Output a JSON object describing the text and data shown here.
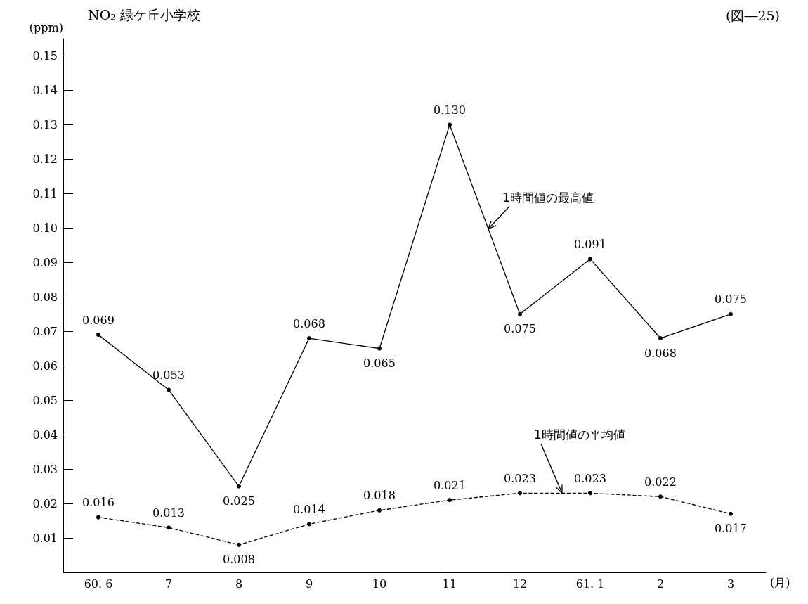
{
  "chart_data": {
    "type": "line",
    "title": "NO₂ 緑ケ丘小学校",
    "ylabel": "(ppm)",
    "xlabel": "(月)",
    "annotations": [
      "(図―25)"
    ],
    "categories": [
      "60. 6",
      "7",
      "8",
      "9",
      "10",
      "11",
      "12",
      "61. 1",
      "2",
      "3"
    ],
    "series": [
      {
        "name": "1時間値の最高値",
        "color": "#000000",
        "line_style": "solid",
        "values": [
          0.069,
          0.053,
          0.025,
          0.068,
          0.065,
          0.13,
          0.075,
          0.091,
          0.068,
          0.075
        ],
        "value_labels": [
          "0.069",
          "0.053",
          "0.025",
          "0.068",
          "0.065",
          "0.130",
          "0.075",
          "0.091",
          "0.068",
          "0.075"
        ]
      },
      {
        "name": "1時間値の平均値",
        "color": "#000000",
        "line_style": "dashed",
        "values": [
          0.016,
          0.013,
          0.008,
          0.014,
          0.018,
          0.021,
          0.023,
          0.023,
          0.022,
          0.017
        ],
        "value_labels": [
          "0.016",
          "0.013",
          "0.008",
          "0.014",
          "0.018",
          "0.021",
          "0.023",
          "0.023",
          "0.022",
          "0.017"
        ]
      }
    ],
    "ylim": [
      0,
      0.155
    ],
    "yticks": [
      {
        "value": 0.01,
        "label": "0.01"
      },
      {
        "value": 0.02,
        "label": "0.02"
      },
      {
        "value": 0.03,
        "label": "0.03"
      },
      {
        "value": 0.04,
        "label": "0.04"
      },
      {
        "value": 0.05,
        "label": "0.05"
      },
      {
        "value": 0.06,
        "label": "0.06"
      },
      {
        "value": 0.07,
        "label": "0.07"
      },
      {
        "value": 0.08,
        "label": "0.08"
      },
      {
        "value": 0.09,
        "label": "0.09"
      },
      {
        "value": 0.1,
        "label": "0.10"
      },
      {
        "value": 0.11,
        "label": "0.11"
      },
      {
        "value": 0.12,
        "label": "0.12"
      },
      {
        "value": 0.13,
        "label": "0.13"
      },
      {
        "value": 0.14,
        "label": "0.14"
      },
      {
        "value": 0.15,
        "label": "0.15"
      }
    ],
    "grid": false,
    "legend": false,
    "marker": "circle"
  }
}
